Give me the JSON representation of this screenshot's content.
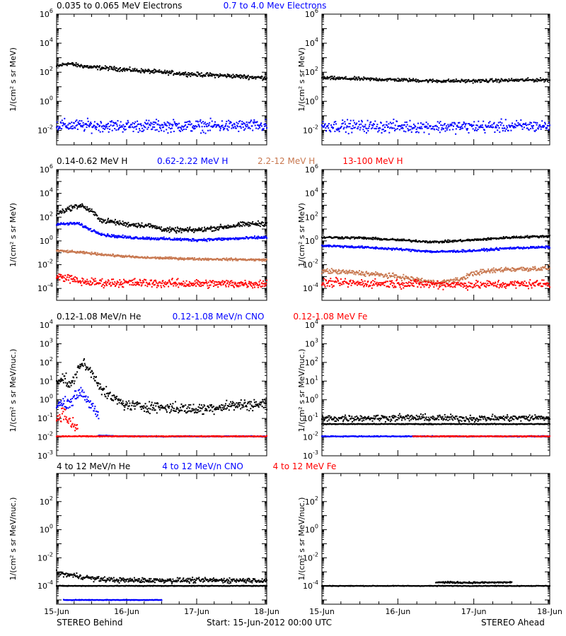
{
  "colors": {
    "black": "#000000",
    "blue": "#0000ff",
    "tan": "#c87850",
    "red": "#ff0000"
  },
  "footer": {
    "left": "STEREO Behind",
    "center": "Start: 15-Jun-2012 00:00 UTC",
    "right": "STEREO Ahead"
  },
  "chart_data": [
    {
      "type": "scatter",
      "log_y": true,
      "row": 0,
      "legend": [
        {
          "text": "0.035 to 0.065 MeV Electrons",
          "color": "#000000"
        },
        {
          "text": "0.7 to 4.0 Mev Electrons",
          "color": "#0000ff"
        }
      ],
      "ylabel": "1/(cm² s sr MeV)",
      "ylim": [
        0.001,
        1000000
      ],
      "ytick_exponents": [
        -2,
        0,
        2,
        4,
        6
      ],
      "panels": [
        {
          "spacecraft": "STEREO Behind",
          "series": [
            {
              "color": "#000000",
              "x_days": [
                0,
                0.15,
                0.3,
                0.5,
                0.8,
                1.0,
                1.5,
                2.0,
                2.5,
                3.0
              ],
              "y": [
                250,
                400,
                300,
                220,
                180,
                150,
                100,
                70,
                55,
                40
              ],
              "scatter": 0.12
            },
            {
              "color": "#0000ff",
              "x_days": [
                0,
                1,
                2,
                3
              ],
              "y": [
                0.022,
                0.02,
                0.02,
                0.02
              ],
              "scatter": 0.35
            }
          ]
        },
        {
          "spacecraft": "STEREO Ahead",
          "series": [
            {
              "color": "#000000",
              "x_days": [
                0,
                1,
                1.5,
                2,
                2.5,
                3
              ],
              "y": [
                40,
                30,
                25,
                25,
                28,
                30
              ],
              "scatter": 0.1
            },
            {
              "color": "#0000ff",
              "x_days": [
                0,
                1,
                2,
                3
              ],
              "y": [
                0.02,
                0.018,
                0.018,
                0.02
              ],
              "scatter": 0.35
            }
          ]
        }
      ]
    },
    {
      "type": "scatter",
      "log_y": true,
      "row": 1,
      "legend": [
        {
          "text": "0.14-0.62 MeV H",
          "color": "#000000"
        },
        {
          "text": "0.62-2.22 MeV H",
          "color": "#0000ff"
        },
        {
          "text": "2.2-12 MeV H",
          "color": "#c87850"
        },
        {
          "text": "13-100 MeV H",
          "color": "#ff0000"
        }
      ],
      "ylabel": "1/(cm² s sr MeV)",
      "ylim": [
        1e-05,
        1000000
      ],
      "ytick_exponents": [
        -4,
        -2,
        0,
        2,
        4,
        6
      ],
      "panels": [
        {
          "spacecraft": "STEREO Behind",
          "series": [
            {
              "color": "#000000",
              "x_days": [
                0,
                0.2,
                0.35,
                0.5,
                0.65,
                0.8,
                1.0,
                1.3,
                1.6,
                2.0,
                2.4,
                2.7,
                3.0
              ],
              "y": [
                200,
                600,
                1000,
                300,
                50,
                40,
                25,
                20,
                8,
                8,
                15,
                25,
                30
              ],
              "scatter": 0.18
            },
            {
              "color": "#0000ff",
              "x_days": [
                0,
                0.3,
                0.5,
                0.7,
                1.0,
                1.5,
                2.0,
                2.5,
                3.0
              ],
              "y": [
                25,
                30,
                8,
                3,
                2,
                1.5,
                1.2,
                1.5,
                2
              ],
              "scatter": 0.1
            },
            {
              "color": "#c87850",
              "x_days": [
                0,
                0.4,
                0.8,
                1.2,
                1.6,
                2.0,
                2.5,
                3.0
              ],
              "y": [
                0.15,
                0.1,
                0.06,
                0.04,
                0.035,
                0.03,
                0.028,
                0.025
              ],
              "scatter": 0.08
            },
            {
              "color": "#ff0000",
              "x_days": [
                0,
                0.15,
                0.3,
                0.6,
                1.0,
                2.0,
                3.0
              ],
              "y": [
                0.001,
                0.0008,
                0.0004,
                0.0003,
                0.0003,
                0.00025,
                0.00025
              ],
              "scatter": 0.3
            }
          ]
        },
        {
          "spacecraft": "STEREO Ahead",
          "series": [
            {
              "color": "#000000",
              "x_days": [
                0,
                0.5,
                1.0,
                1.5,
                2.0,
                2.5,
                3.0
              ],
              "y": [
                2,
                1.8,
                1.2,
                0.8,
                1.2,
                2,
                2.5
              ],
              "scatter": 0.08
            },
            {
              "color": "#0000ff",
              "x_days": [
                0,
                0.5,
                1.0,
                1.5,
                2.0,
                2.5,
                3.0
              ],
              "y": [
                0.4,
                0.3,
                0.2,
                0.12,
                0.15,
                0.25,
                0.3
              ],
              "scatter": 0.08
            },
            {
              "color": "#c87850",
              "x_days": [
                0,
                0.5,
                1.0,
                1.5,
                1.8,
                2.0,
                2.4,
                3.0
              ],
              "y": [
                0.003,
                0.002,
                0.001,
                0.0003,
                0.0005,
                0.002,
                0.004,
                0.005
              ],
              "scatter": 0.18
            },
            {
              "color": "#ff0000",
              "x_days": [
                0,
                1,
                2,
                3
              ],
              "y": [
                0.0003,
                0.00025,
                0.0002,
                0.00025
              ],
              "scatter": 0.3
            }
          ]
        }
      ]
    },
    {
      "type": "scatter",
      "log_y": true,
      "row": 2,
      "legend": [
        {
          "text": "0.12-1.08 MeV/n He",
          "color": "#000000"
        },
        {
          "text": "0.12-1.08 MeV/n CNO",
          "color": "#0000ff"
        },
        {
          "text": "0.12-1.08 MeV Fe",
          "color": "#ff0000"
        }
      ],
      "ylabel": "1/(cm² s sr MeV/nuc.)",
      "ylim": [
        0.001,
        10000
      ],
      "ytick_exponents": [
        -3,
        -2,
        -1,
        0,
        1,
        2,
        3,
        4
      ],
      "panels": [
        {
          "spacecraft": "STEREO Behind",
          "series": [
            {
              "color": "#000000",
              "x_days": [
                0,
                0.1,
                0.2,
                0.35,
                0.5,
                0.7,
                1.0,
                1.5,
                2.0,
                2.5,
                3.0
              ],
              "y": [
                10,
                15,
                5,
                100,
                30,
                2,
                0.5,
                0.4,
                0.3,
                0.5,
                0.6
              ],
              "scatter": 0.25
            },
            {
              "color": "#0000ff",
              "x_days": [
                0,
                0.2,
                0.35,
                0.5,
                0.6
              ],
              "y": [
                0.5,
                0.8,
                3,
                0.5,
                0.1
              ],
              "scatter": 0.25
            },
            {
              "color": "#0000ff",
              "x_days": [
                0.6,
                1.0,
                2.0,
                3.0
              ],
              "y": [
                0.012,
                0.011,
                0.011,
                0.011
              ],
              "scatter": 0.02
            },
            {
              "color": "#ff0000",
              "x_days": [
                0,
                0.1,
                0.2,
                0.3
              ],
              "y": [
                0.1,
                0.2,
                0.05,
                0.03
              ],
              "scatter": 0.3
            },
            {
              "color": "#ff0000",
              "x_days": [
                0,
                1.0,
                2.0,
                3.0
              ],
              "y": [
                0.011,
                0.011,
                0.011,
                0.011
              ],
              "scatter": 0.02
            }
          ]
        },
        {
          "spacecraft": "STEREO Ahead",
          "series": [
            {
              "color": "#000000",
              "x_days": [
                0,
                1,
                2,
                3
              ],
              "y": [
                0.05,
                0.05,
                0.05,
                0.05
              ],
              "scatter": 0.02
            },
            {
              "color": "#000000",
              "x_days": [
                0,
                1,
                2,
                3
              ],
              "y": [
                0.1,
                0.11,
                0.1,
                0.11
              ],
              "scatter": 0.15
            },
            {
              "color": "#0000ff",
              "x_days": [
                0,
                1,
                2,
                3
              ],
              "y": [
                0.011,
                0.011,
                0.011,
                0.011
              ],
              "scatter": 0.02
            },
            {
              "color": "#ff0000",
              "x_days": [
                1.2,
                2,
                3
              ],
              "y": [
                0.011,
                0.011,
                0.011
              ],
              "scatter": 0.02
            }
          ]
        }
      ]
    },
    {
      "type": "scatter",
      "log_y": true,
      "row": 3,
      "legend": [
        {
          "text": "4 to 12 MeV/n He",
          "color": "#000000"
        },
        {
          "text": "4 to 12 MeV/n CNO",
          "color": "#0000ff"
        },
        {
          "text": "4 to 12 MeV Fe",
          "color": "#ff0000"
        }
      ],
      "ylabel": "1/(cm² s sr MeV/nuc.)",
      "ylim": [
        5e-06,
        10000
      ],
      "ytick_exponents": [
        -4,
        -2,
        0,
        2
      ],
      "panels": [
        {
          "spacecraft": "STEREO Behind",
          "series": [
            {
              "color": "#000000",
              "x_days": [
                0,
                0.3,
                0.6,
                1.0,
                2.0,
                3.0
              ],
              "y": [
                0.0008,
                0.0005,
                0.0003,
                0.00025,
                0.00025,
                0.00025
              ],
              "scatter": 0.15
            },
            {
              "color": "#000000",
              "x_days": [
                0,
                1,
                2,
                3
              ],
              "y": [
                0.0001,
                0.0001,
                0.0001,
                0.0001
              ],
              "scatter": 0.02
            },
            {
              "color": "#0000ff",
              "x_days": [
                0.1,
                0.5,
                1.5
              ],
              "y": [
                1e-05,
                1e-05,
                1e-05
              ],
              "scatter": 0.02
            }
          ]
        },
        {
          "spacecraft": "STEREO Ahead",
          "series": [
            {
              "color": "#000000",
              "x_days": [
                0,
                1,
                2,
                3
              ],
              "y": [
                0.0001,
                0.0001,
                0.0001,
                0.0001
              ],
              "scatter": 0.02
            },
            {
              "color": "#000000",
              "x_days": [
                1.5,
                2.0,
                2.5
              ],
              "y": [
                0.00018,
                0.00017,
                0.00018
              ],
              "scatter": 0.05
            }
          ]
        }
      ]
    }
  ],
  "x_axis": {
    "ticks": [
      "15-Jun",
      "16-Jun",
      "17-Jun",
      "18-Jun"
    ],
    "range_days": [
      0,
      3
    ]
  }
}
